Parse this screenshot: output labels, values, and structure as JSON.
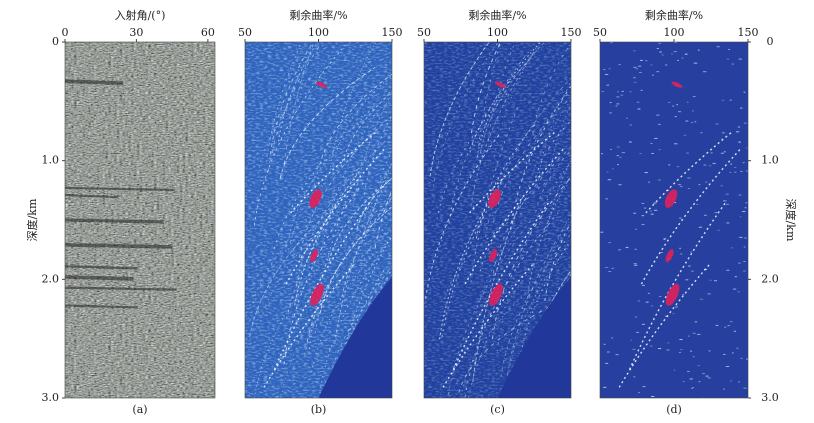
{
  "chart_data": [
    {
      "type": "image",
      "style": "gather",
      "xlabel": "入射角/(°)",
      "xlim": [
        0,
        63
      ],
      "xticks": [
        0,
        30,
        60
      ],
      "ylabel": "深度/km",
      "ylim": [
        0,
        3
      ],
      "yticks": [
        0,
        {
          "value": 1,
          "label": "1.0"
        },
        {
          "value": 2,
          "label": "2.0"
        },
        {
          "value": 3,
          "label": "3.0"
        }
      ],
      "yaxis": "left",
      "caption": "(a)"
    },
    {
      "type": "image",
      "style": "spectrum",
      "color": "#2f63bd",
      "xlabel": "剩余曲率/%",
      "xlim": [
        50,
        150
      ],
      "xticks": [
        50,
        100,
        150
      ],
      "caption": "(b)"
    },
    {
      "type": "image",
      "style": "spectrum",
      "color": "#21419f",
      "xlabel": "剩余曲率/%",
      "xlim": [
        50,
        150
      ],
      "xticks": [
        50,
        100,
        150
      ],
      "caption": "(c)"
    },
    {
      "type": "image",
      "style": "sparse",
      "color": "#27409f",
      "xlabel": "剩余曲率/%",
      "xlim": [
        50,
        150
      ],
      "xticks": [
        50,
        100,
        150
      ],
      "ylabel": "深度/km",
      "ylim": [
        0,
        3
      ],
      "yticks": [
        0,
        {
          "value": 1,
          "label": "1.0"
        },
        {
          "value": 2,
          "label": "2.0"
        },
        {
          "value": 3,
          "label": "3.0"
        }
      ],
      "yaxis": "right",
      "caption": "(d)"
    }
  ]
}
